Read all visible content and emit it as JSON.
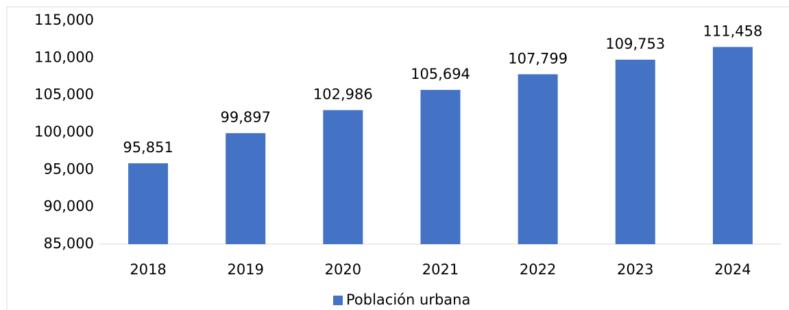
{
  "chart_data": {
    "type": "bar",
    "categories": [
      "2018",
      "2019",
      "2020",
      "2021",
      "2022",
      "2023",
      "2024"
    ],
    "series": [
      {
        "name": "Población urbana",
        "color": "#4472c4",
        "values": [
          95851,
          99897,
          102986,
          105694,
          107799,
          109753,
          111458
        ],
        "value_labels": [
          "95,851",
          "99,897",
          "102,986",
          "105,694",
          "107,799",
          "109,753",
          "111,458"
        ]
      }
    ],
    "ylim": [
      85000,
      115000
    ],
    "yticks": [
      {
        "value": 85000,
        "label": "85,000"
      },
      {
        "value": 90000,
        "label": "90,000"
      },
      {
        "value": 95000,
        "label": "95,000"
      },
      {
        "value": 100000,
        "label": "100,000"
      },
      {
        "value": 105000,
        "label": "105,000"
      },
      {
        "value": 110000,
        "label": "110,000"
      },
      {
        "value": 115000,
        "label": "115,000"
      }
    ],
    "grid": false,
    "legend": "bottom"
  }
}
